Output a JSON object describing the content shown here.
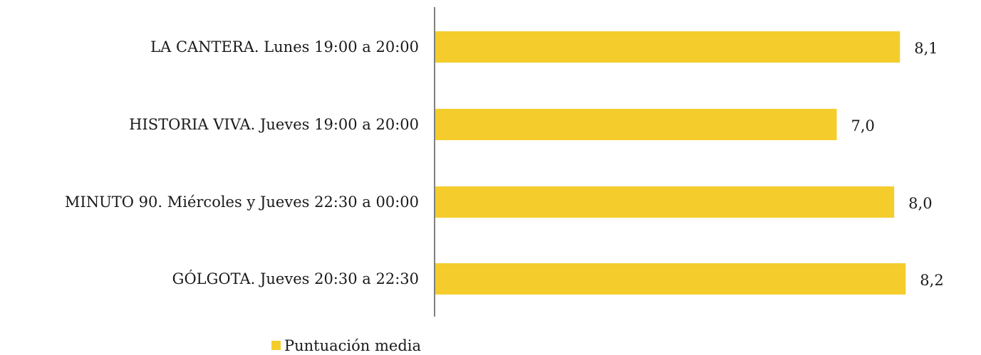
{
  "chart_data": {
    "type": "bar",
    "orientation": "horizontal",
    "categories": [
      "LA CANTERA. Lunes 19:00 a 20:00",
      "HISTORIA VIVA. Jueves 19:00 a 20:00",
      "MINUTO 90. Miércoles y Jueves 22:30 a 00:00",
      "GÓLGOTA. Jueves 20:30 a 22:30"
    ],
    "series": [
      {
        "name": "Puntuación media",
        "values": [
          8.1,
          7.0,
          8.0,
          8.2
        ],
        "value_labels": [
          "8,1",
          "7,0",
          "8,0",
          "8,2"
        ],
        "color": "#F4CD2C"
      }
    ],
    "xlim": [
      0,
      9.3
    ],
    "grid": false,
    "legend_position": "bottom-left"
  }
}
